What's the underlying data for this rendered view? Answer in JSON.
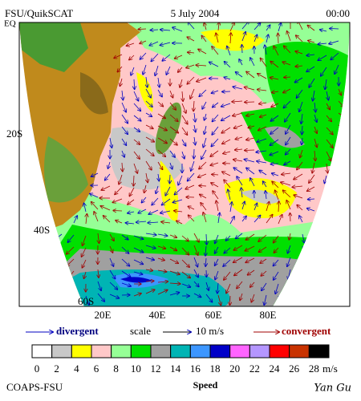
{
  "header": {
    "source": "FSU/QuikSCAT",
    "date": "5 July 2004",
    "time": "00:00"
  },
  "map": {
    "lat_labels": [
      "EQ",
      "20S",
      "40S",
      "60S"
    ],
    "lon_labels": [
      "20E",
      "40E",
      "60E",
      "80E"
    ]
  },
  "legend": {
    "divergent": "divergent",
    "scale": "scale",
    "scale_value": "10 m/s",
    "convergent": "convergent"
  },
  "colorbar": {
    "ticks": [
      0,
      2,
      4,
      6,
      8,
      10,
      12,
      14,
      16,
      18,
      20,
      22,
      24,
      26,
      28
    ],
    "unit": "m/s",
    "title": "Speed",
    "colors": [
      "#ffffff",
      "#c8c8c8",
      "#ffff00",
      "#ffc8c8",
      "#96ff96",
      "#00e000",
      "#a0a0a0",
      "#00b4b4",
      "#3c96ff",
      "#0000c8",
      "#ff64ff",
      "#b496ff",
      "#ff0000",
      "#c83200",
      "#000000"
    ]
  },
  "footer": {
    "left": "COAPS-FSU",
    "right": "Yan Gu"
  }
}
